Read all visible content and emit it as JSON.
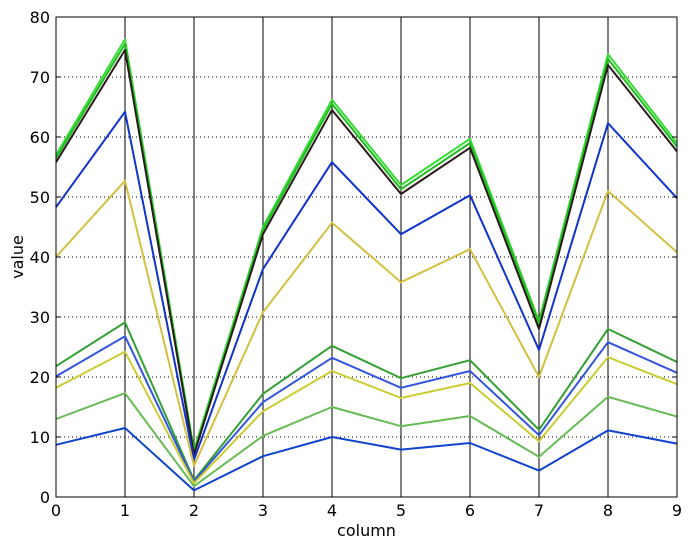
{
  "chart_data": {
    "type": "line",
    "title": "",
    "xlabel": "column",
    "ylabel": "value",
    "xlim": [
      0,
      9
    ],
    "ylim": [
      0,
      80
    ],
    "x": [
      0,
      1,
      2,
      3,
      4,
      5,
      6,
      7,
      8,
      9
    ],
    "x_tick_labels": [
      "0",
      "1",
      "2",
      "3",
      "4",
      "5",
      "6",
      "7",
      "8",
      "9"
    ],
    "y_ticks": [
      0,
      10,
      20,
      30,
      40,
      50,
      60,
      70,
      80
    ],
    "y_tick_labels": [
      "0",
      "10",
      "20",
      "30",
      "40",
      "50",
      "60",
      "70",
      "80"
    ],
    "grid": {
      "x": "solid-vertical",
      "y": "dotted-horizontal"
    },
    "legend": "none",
    "series": [
      {
        "color": "#33dd33",
        "values": [
          57.0,
          76.3,
          7.8,
          45.0,
          66.2,
          52.0,
          59.7,
          29.3,
          73.8,
          59.0
        ]
      },
      {
        "color": "#22bb22",
        "values": [
          56.5,
          75.5,
          7.4,
          44.5,
          65.5,
          51.3,
          59.0,
          28.9,
          73.0,
          58.4
        ]
      },
      {
        "color": "#2b1b1b",
        "values": [
          55.8,
          74.5,
          7.1,
          43.8,
          64.5,
          50.5,
          58.2,
          28.0,
          72.0,
          57.6
        ]
      },
      {
        "color": "#1133cc",
        "values": [
          48.3,
          64.2,
          6.2,
          38.0,
          55.8,
          43.8,
          50.3,
          24.5,
          62.3,
          49.8
        ]
      },
      {
        "color": "#d4c040",
        "values": [
          40.0,
          52.7,
          5.2,
          30.8,
          45.7,
          35.8,
          41.3,
          20.0,
          51.0,
          40.8
        ]
      },
      {
        "color": "#33a033",
        "values": [
          21.8,
          29.1,
          2.8,
          17.2,
          25.2,
          19.8,
          22.8,
          11.2,
          28.0,
          22.5
        ]
      },
      {
        "color": "#3355dd",
        "values": [
          20.1,
          26.8,
          2.6,
          15.8,
          23.2,
          18.2,
          21.0,
          10.3,
          25.8,
          20.7
        ]
      },
      {
        "color": "#cccc33",
        "values": [
          18.2,
          24.2,
          2.3,
          14.3,
          21.0,
          16.5,
          19.0,
          9.3,
          23.3,
          18.8
        ]
      },
      {
        "color": "#66bb55",
        "values": [
          13.0,
          17.3,
          1.8,
          10.2,
          15.0,
          11.8,
          13.5,
          6.7,
          16.7,
          13.4
        ]
      },
      {
        "color": "#1144cc",
        "values": [
          8.7,
          11.5,
          1.1,
          6.8,
          10.0,
          7.9,
          9.0,
          4.4,
          11.1,
          8.9
        ]
      }
    ]
  }
}
